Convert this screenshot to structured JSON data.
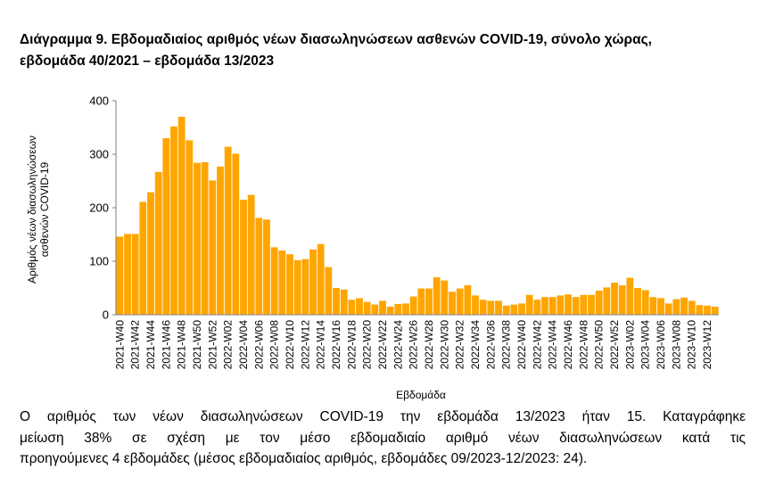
{
  "title": {
    "line1": "Διάγραμμα 9. Εβδομαδιαίος αριθμός νέων διασωληνώσεων ασθενών COVID-19, σύνολο χώρας,",
    "line2": "εβδομάδα 40/2021 – εβδομάδα 13/2023"
  },
  "caption": {
    "line1": "Ο αριθμός των νέων διασωληνώσεων COVID-19 την εβδομάδα 13/2023 ήταν 15. Καταγράφηκε",
    "line2": "μείωση 38% σε σχέση με τον μέσο εβδομαδιαίο αριθμό νέων διασωληνώσεων κατά τις",
    "line3": "προηγούμενες 4 εβδομάδες (μέσος εβδομαδιαίος αριθμός, εβδομάδες 09/2023-12/2023: 24)."
  },
  "colors": {
    "bar": "#FFA500",
    "axis": "#808080",
    "text": "#000000"
  },
  "chart_data": {
    "type": "bar",
    "xlabel": "Εβδομάδα",
    "ylabel_lines": [
      "Αριθμός νέων διασωληνώσεων",
      "ασθενών COVID-19"
    ],
    "ylim": [
      0,
      400
    ],
    "yticks": [
      0,
      100,
      200,
      300,
      400
    ],
    "grid": false,
    "categories": [
      "2021-W40",
      "2021-W41",
      "2021-W42",
      "2021-W43",
      "2021-W44",
      "2021-W45",
      "2021-W46",
      "2021-W47",
      "2021-W48",
      "2021-W49",
      "2021-W50",
      "2021-W51",
      "2021-W52",
      "2022-W01",
      "2022-W02",
      "2022-W03",
      "2022-W04",
      "2022-W05",
      "2022-W06",
      "2022-W07",
      "2022-W08",
      "2022-W09",
      "2022-W10",
      "2022-W11",
      "2022-W12",
      "2022-W13",
      "2022-W14",
      "2022-W15",
      "2022-W16",
      "2022-W17",
      "2022-W18",
      "2022-W19",
      "2022-W20",
      "2022-W21",
      "2022-W22",
      "2022-W23",
      "2022-W24",
      "2022-W25",
      "2022-W26",
      "2022-W27",
      "2022-W28",
      "2022-W29",
      "2022-W30",
      "2022-W31",
      "2022-W32",
      "2022-W33",
      "2022-W34",
      "2022-W35",
      "2022-W36",
      "2022-W37",
      "2022-W38",
      "2022-W39",
      "2022-W40",
      "2022-W41",
      "2022-W42",
      "2022-W43",
      "2022-W44",
      "2022-W45",
      "2022-W46",
      "2022-W47",
      "2022-W48",
      "2022-W49",
      "2022-W50",
      "2022-W51",
      "2022-W52",
      "2023-W01",
      "2023-W02",
      "2023-W03",
      "2023-W04",
      "2023-W05",
      "2023-W06",
      "2023-W07",
      "2023-W08",
      "2023-W09",
      "2023-W10",
      "2023-W11",
      "2023-W12",
      "2023-W13"
    ],
    "tick_labels": [
      "2021-W40",
      "2021-W42",
      "2021-W44",
      "2021-W46",
      "2021-W48",
      "2021-W50",
      "2021-W52",
      "2022-W02",
      "2022-W04",
      "2022-W06",
      "2022-W08",
      "2022-W10",
      "2022-W12",
      "2022-W14",
      "2022-W16",
      "2022-W18",
      "2022-W20",
      "2022-W22",
      "2022-W24",
      "2022-W26",
      "2022-W28",
      "2022-W30",
      "2022-W32",
      "2022-W34",
      "2022-W36",
      "2022-W38",
      "2022-W40",
      "2022-W42",
      "2022-W44",
      "2022-W46",
      "2022-W48",
      "2022-W50",
      "2022-W52",
      "2023-W02",
      "2023-W04",
      "2023-W06",
      "2023-W08",
      "2023-W10",
      "2023-W12"
    ],
    "values": [
      146,
      151,
      151,
      211,
      229,
      267,
      330,
      352,
      370,
      326,
      284,
      285,
      251,
      277,
      314,
      301,
      215,
      224,
      181,
      178,
      126,
      120,
      113,
      102,
      104,
      122,
      132,
      89,
      50,
      47,
      28,
      31,
      24,
      19,
      26,
      15,
      20,
      21,
      34,
      49,
      49,
      70,
      64,
      43,
      49,
      55,
      36,
      28,
      26,
      26,
      17,
      19,
      21,
      37,
      28,
      33,
      33,
      36,
      38,
      33,
      37,
      37,
      45,
      51,
      60,
      55,
      69,
      50,
      46,
      33,
      31,
      21,
      29,
      32,
      26,
      18,
      17,
      15
    ]
  }
}
